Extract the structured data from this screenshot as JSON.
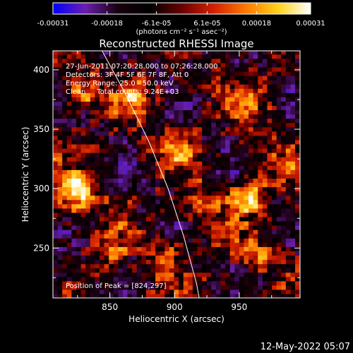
{
  "chart_data": {
    "type": "heatmap",
    "title": "Reconstructed RHESSI Image",
    "xlabel": "Heliocentric X (arcsec)",
    "ylabel": "Heliocentric Y (arcsec)",
    "xlim": [
      806,
      997
    ],
    "ylim": [
      208,
      416
    ],
    "x_ticks": [
      850,
      900,
      950
    ],
    "y_ticks": [
      250,
      300,
      350,
      400
    ],
    "colorbar": {
      "range": [
        -0.00031,
        0.00031
      ],
      "tick_values": [
        -0.00031,
        -0.00018,
        -6.1e-05,
        6.1e-05,
        0.00018,
        0.00031
      ],
      "tick_labels": [
        "-0.00031",
        "-0.00018",
        "-6.1e-05",
        "6.1e-05",
        "0.00018",
        "0.00031"
      ],
      "units": "(photons cm⁻² s⁻¹ asec⁻²)",
      "colors": [
        "#0000ff",
        "#6a1fb0",
        "#1a0010",
        "#000000",
        "#6a0000",
        "#d32200",
        "#ff7a00",
        "#ffd21e",
        "#ffffff"
      ]
    },
    "annotations": [
      "27-Jun-2011 07:20:28.000 to 07:26:28.000",
      "Detectors: 3F 4F 5F 6F 7F 8F, Att 0",
      "Energy Range: 25.0 - 50.0 keV",
      "Clean     Total counts: 9.24E+03"
    ],
    "peak_label": "Position of Peak = [824,297]",
    "peak": [
      824,
      297
    ],
    "bright_sources": [
      {
        "x": 824,
        "y": 297,
        "value": 0.00031
      },
      {
        "x": 958,
        "y": 292,
        "value": 0.00026
      },
      {
        "x": 870,
        "y": 378,
        "value": 0.0002
      },
      {
        "x": 830,
        "y": 383,
        "value": 0.00018
      },
      {
        "x": 958,
        "y": 372,
        "value": 0.00016
      },
      {
        "x": 900,
        "y": 335,
        "value": 0.00015
      },
      {
        "x": 848,
        "y": 252,
        "value": 0.00014
      },
      {
        "x": 968,
        "y": 246,
        "value": 0.00013
      },
      {
        "x": 925,
        "y": 288,
        "value": 0.00012
      },
      {
        "x": 895,
        "y": 243,
        "value": 0.00012
      },
      {
        "x": 985,
        "y": 320,
        "value": 0.0001
      }
    ],
    "limb": [
      [
        842,
        420
      ],
      [
        862,
        380
      ],
      [
        880,
        340
      ],
      [
        895,
        300
      ],
      [
        907,
        260
      ],
      [
        917,
        220
      ],
      [
        919,
        208
      ]
    ],
    "grid": false
  },
  "footer": {
    "timestamp": "12-May-2022 05:07"
  }
}
